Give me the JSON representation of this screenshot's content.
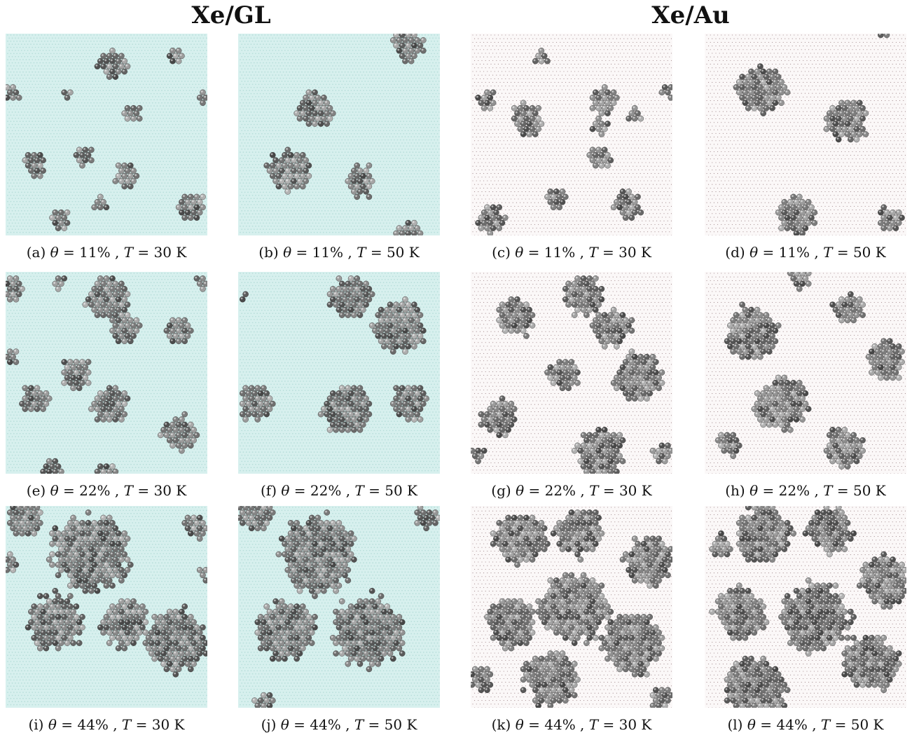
{
  "groups": [
    {
      "title": "Xe/GL",
      "substrate": "graphene",
      "color": "#d7f0ee"
    },
    {
      "title": "Xe/Au",
      "substrate": "gold",
      "color": "#fbf8f8"
    }
  ],
  "panels": [
    {
      "label": "(a)",
      "coverage": "11%",
      "temperature": "30 K",
      "substrate": "graphene"
    },
    {
      "label": "(b)",
      "coverage": "11%",
      "temperature": "50 K",
      "substrate": "graphene"
    },
    {
      "label": "(c)",
      "coverage": "11%",
      "temperature": "30 K",
      "substrate": "gold"
    },
    {
      "label": "(d)",
      "coverage": "11%",
      "temperature": "50 K",
      "substrate": "gold"
    },
    {
      "label": "(e)",
      "coverage": "22%",
      "temperature": "30 K",
      "substrate": "graphene"
    },
    {
      "label": "(f)",
      "coverage": "22%",
      "temperature": "50 K",
      "substrate": "graphene"
    },
    {
      "label": "(g)",
      "coverage": "22%",
      "temperature": "30 K",
      "substrate": "gold"
    },
    {
      "label": "(h)",
      "coverage": "22%",
      "temperature": "50 K",
      "substrate": "gold"
    },
    {
      "label": "(i)",
      "coverage": "44%",
      "temperature": "30 K",
      "substrate": "graphene"
    },
    {
      "label": "(j)",
      "coverage": "44%",
      "temperature": "50 K",
      "substrate": "graphene"
    },
    {
      "label": "(k)",
      "coverage": "44%",
      "temperature": "30 K",
      "substrate": "gold"
    },
    {
      "label": "(l)",
      "coverage": "44%",
      "temperature": "50 K",
      "substrate": "gold"
    }
  ],
  "symbols": {
    "theta": "θ",
    "T": "T",
    "equals": " = "
  }
}
